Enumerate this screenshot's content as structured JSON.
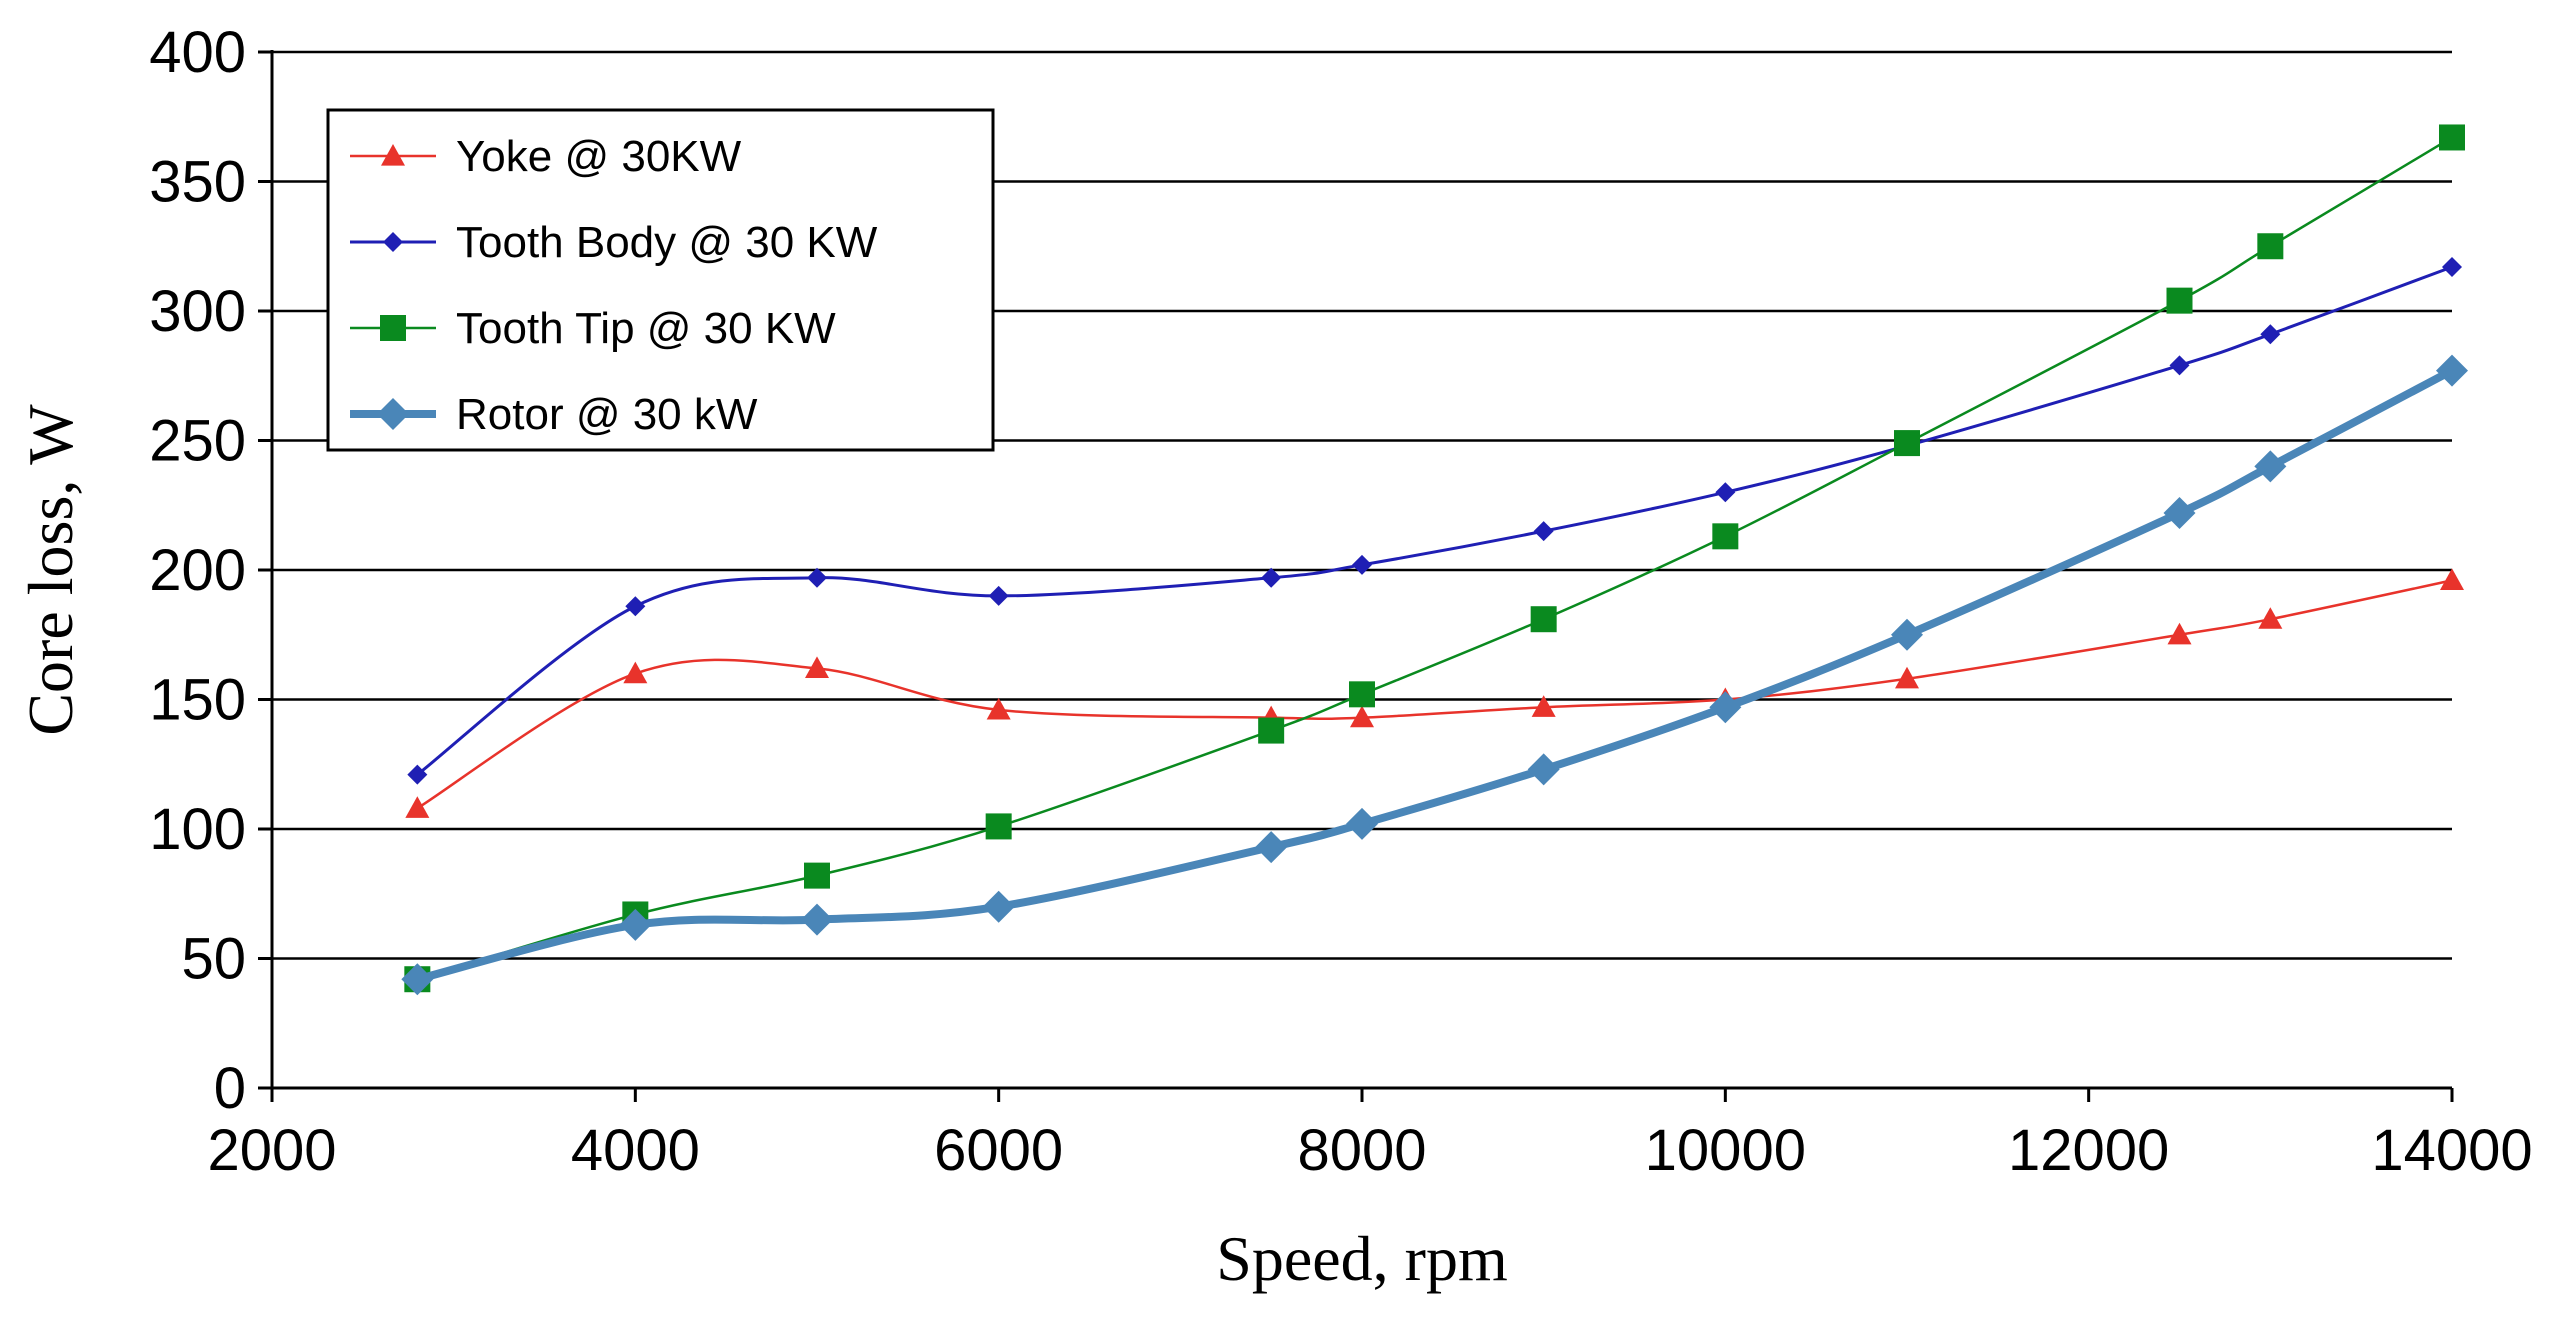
{
  "chart_data": {
    "type": "line",
    "title": "",
    "xlabel": "Speed, rpm",
    "ylabel": "Core loss, W",
    "xlim": [
      2000,
      14000
    ],
    "ylim": [
      0,
      400
    ],
    "xticks": [
      2000,
      4000,
      6000,
      8000,
      10000,
      12000,
      14000
    ],
    "yticks": [
      0,
      50,
      100,
      150,
      200,
      250,
      300,
      350,
      400
    ],
    "grid": "horizontal",
    "legend_position": "top-left",
    "series": [
      {
        "name": "Yoke @ 30KW",
        "color": "#e8332b",
        "marker": "triangle",
        "points": [
          [
            2800,
            108
          ],
          [
            4000,
            160
          ],
          [
            5000,
            162
          ],
          [
            6000,
            146
          ],
          [
            7500,
            143
          ],
          [
            8000,
            143
          ],
          [
            9000,
            147
          ],
          [
            10000,
            150
          ],
          [
            11000,
            158
          ],
          [
            12500,
            175
          ],
          [
            13000,
            181
          ],
          [
            14000,
            196
          ]
        ]
      },
      {
        "name": "Tooth Body @ 30 KW",
        "color": "#1f1fb4",
        "marker": "diamond",
        "points": [
          [
            2800,
            121
          ],
          [
            4000,
            186
          ],
          [
            5000,
            197
          ],
          [
            6000,
            190
          ],
          [
            7500,
            197
          ],
          [
            8000,
            202
          ],
          [
            9000,
            215
          ],
          [
            10000,
            230
          ],
          [
            11000,
            248
          ],
          [
            12500,
            279
          ],
          [
            13000,
            291
          ],
          [
            14000,
            317
          ]
        ]
      },
      {
        "name": "Tooth Tip @ 30 KW",
        "color": "#0a8a1f",
        "marker": "square",
        "points": [
          [
            2800,
            42
          ],
          [
            4000,
            67
          ],
          [
            5000,
            82
          ],
          [
            6000,
            101
          ],
          [
            7500,
            138
          ],
          [
            8000,
            152
          ],
          [
            9000,
            181
          ],
          [
            10000,
            213
          ],
          [
            11000,
            249
          ],
          [
            12500,
            304
          ],
          [
            13000,
            325
          ],
          [
            14000,
            367
          ]
        ]
      },
      {
        "name": "Rotor @ 30 kW",
        "color": "#4a86b8",
        "marker": "diamond",
        "points": [
          [
            2800,
            42
          ],
          [
            4000,
            63
          ],
          [
            5000,
            65
          ],
          [
            6000,
            70
          ],
          [
            7500,
            93
          ],
          [
            8000,
            102
          ],
          [
            9000,
            123
          ],
          [
            10000,
            147
          ],
          [
            11000,
            175
          ],
          [
            12500,
            222
          ],
          [
            13000,
            240
          ],
          [
            14000,
            277
          ]
        ]
      }
    ]
  }
}
